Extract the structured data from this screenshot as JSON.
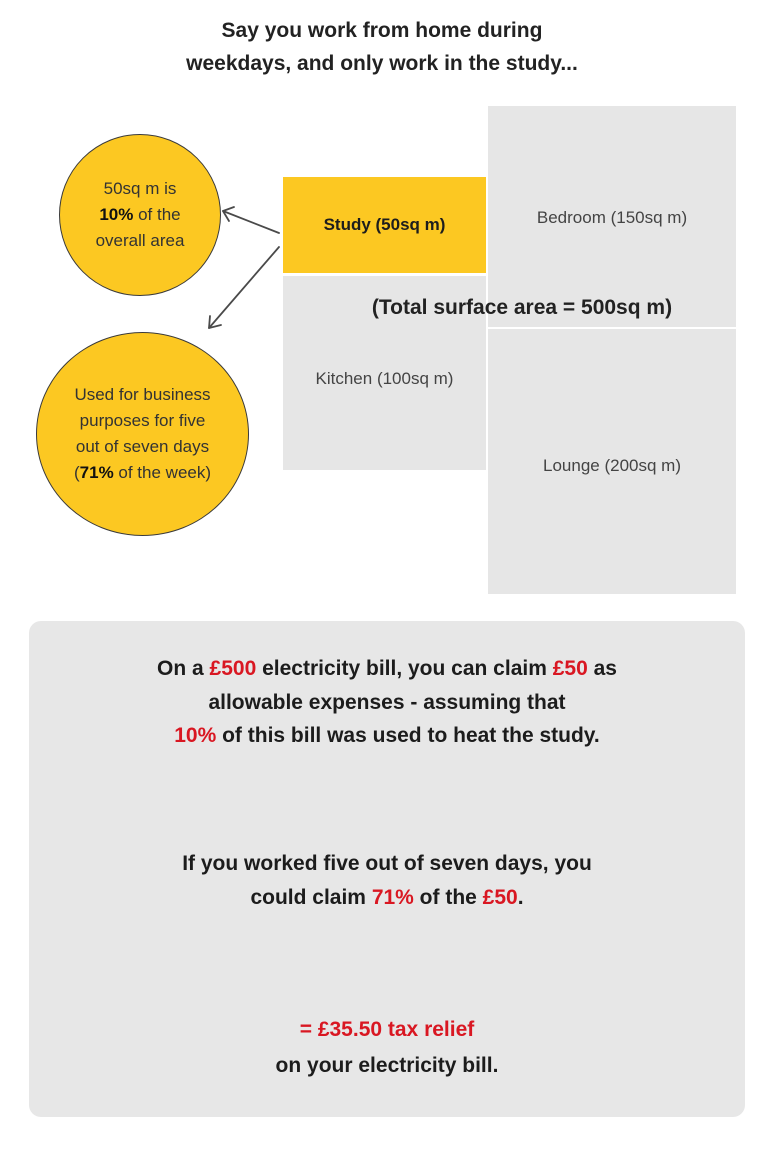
{
  "heading": {
    "line1": "Say you work from home during",
    "line2": "weekdays, and only work in the study..."
  },
  "floorplan": {
    "study": "Study (50sq m)",
    "bedroom": "Bedroom (150sq m)",
    "kitchen": "Kitchen (100sq m)",
    "lounge": "Lounge (200sq m)",
    "total": "(Total surface area = 500sq m)"
  },
  "circle_area": {
    "line1": "50sq m is",
    "bold_pct": "10%",
    "line2_rest": " of the",
    "line3": "overall area"
  },
  "circle_time": {
    "line1": "Used for business",
    "line2": "purposes for five",
    "line3": "out of seven days",
    "open_paren": "(",
    "bold_pct": "71%",
    "line4_rest": " of the week)"
  },
  "panel": {
    "s1": {
      "a": "On a ",
      "b": "£500",
      "c": " electricity bill, you can claim ",
      "d": "£50",
      "e": " as",
      "line2": "allowable expenses - assuming that",
      "f": "10%",
      "g": " of this bill was used to heat the study."
    },
    "s2": {
      "line1": "If you worked five out of seven days, you",
      "a": "could claim ",
      "b": "71%",
      "c": " of the ",
      "d": "£50",
      "e": "."
    },
    "s3": {
      "line1": "= £35.50 tax relief",
      "line2": "on your electricity bill."
    }
  },
  "colors": {
    "accent_yellow": "#fcc822",
    "room_grey": "#e6e6e6",
    "highlight_red": "#d91722"
  }
}
